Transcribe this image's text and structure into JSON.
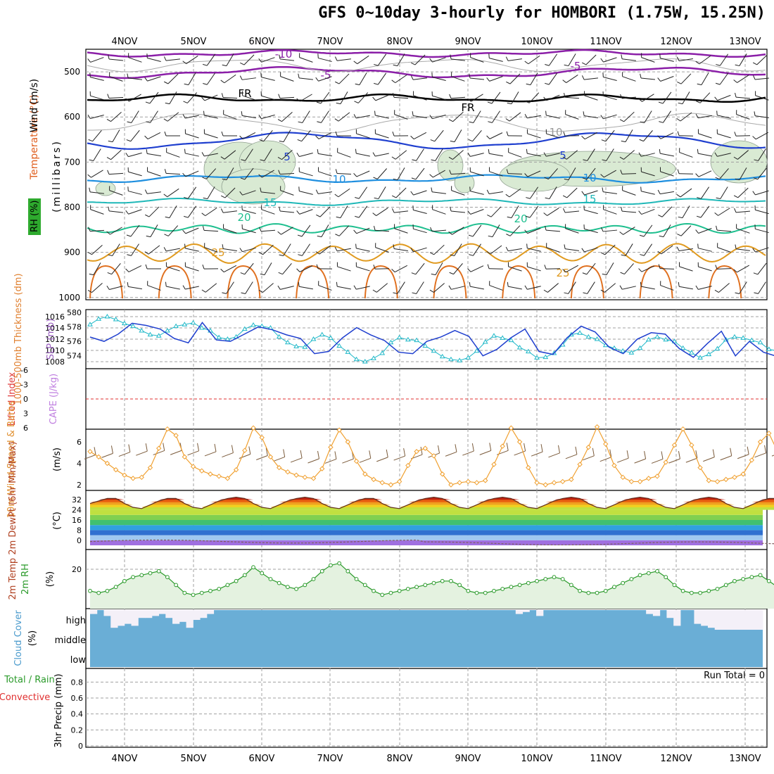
{
  "title": "GFS 0~10day 3-hourly for HOMBORI (1.75W, 15.25N)",
  "dates": [
    "4NOV",
    "5NOV",
    "6NOV",
    "7NOV",
    "8NOV",
    "9NOV",
    "10NOV",
    "11NOV",
    "12NOV",
    "13NOV"
  ],
  "colors": {
    "temp_cold": "#8b1fa8",
    "temp_fr": "#000000",
    "temp_5": "#1f3fcf",
    "temp_10": "#1f8fdf",
    "temp_15": "#1fb8b8",
    "temp_20": "#1fbf8f",
    "temp_25": "#e09a1f",
    "temp_30": "#e0701f",
    "rh_fill": "#d9ead3",
    "wind_speed": "#f0a030",
    "wind_barb": "#7a5a3a",
    "thickness": "#1f3fcf",
    "slp": "#1fb8c8",
    "dewpoint": "#806060",
    "rh2m": "#2a9a2a",
    "cloud": "#6aaed6",
    "lifted_zero": "#e03030"
  },
  "panels": {
    "upper": {
      "ylabel_parts": [
        "Wind (m/s)",
        "Temperature (°C)",
        "RH (%)"
      ],
      "y_axis_title": "(millibars)",
      "ticks": [
        "500",
        "600",
        "700",
        "800",
        "900",
        "1000"
      ],
      "contour_labels": [
        "-10",
        "-5",
        "-5",
        "FR",
        "FR",
        "5",
        "5",
        "10",
        "10",
        "15",
        "15",
        "20",
        "20",
        "25",
        "25",
        "10"
      ]
    },
    "slp": {
      "left_label": "1000-500mb Thickness (dm)",
      "right_label": "SLP (mb)",
      "left_ticks": [
        "580",
        "578",
        "576",
        "574"
      ],
      "right_ticks": [
        "1016",
        "1014",
        "1012",
        "1010",
        "1008"
      ]
    },
    "cape": {
      "left_label": "Lifted Index",
      "right_label": "CAPE (J/kg)",
      "ticks": [
        "-6",
        "-3",
        "0",
        "3",
        "6"
      ]
    },
    "wind": {
      "label": "10m Wind Speed & Barbs",
      "unit": "(m/s)",
      "ticks": [
        "6",
        "4",
        "2"
      ]
    },
    "temp": {
      "label": "2m Temp 2m DewPt (6hr Min/Max)",
      "unit": "(°C)",
      "ticks": [
        "32",
        "24",
        "16",
        "8",
        "0"
      ]
    },
    "rh": {
      "label": "2m RH",
      "unit": "(%)",
      "ticks": [
        "20"
      ]
    },
    "cloud": {
      "label": "Cloud Cover",
      "unit": "(%)",
      "ticks": [
        "high",
        "middle",
        "low"
      ]
    },
    "precip": {
      "label_parts": [
        "Total / Rain",
        "Convective"
      ],
      "ylabel": "3hr Precip (mm)",
      "ticks": [
        "0.8",
        "0.6",
        "0.4",
        "0.2",
        "0"
      ],
      "run_total": "Run Total = 0"
    }
  },
  "chart_data": [
    {
      "type": "line",
      "name": "2m RH",
      "x_step_hours": 3,
      "ylim": [
        0,
        30
      ],
      "values": [
        9,
        8,
        9,
        11,
        14,
        16,
        17,
        18,
        19,
        16,
        12,
        8,
        7,
        8,
        9,
        10,
        12,
        14,
        17,
        21,
        18,
        15,
        13,
        11,
        10,
        12,
        15,
        19,
        22,
        23,
        19,
        15,
        12,
        9,
        7,
        8,
        9,
        10,
        11,
        12,
        13,
        14,
        14,
        12,
        9,
        8,
        8,
        9,
        10,
        11,
        12,
        13,
        14,
        15,
        16,
        15,
        12,
        9,
        8,
        8,
        9,
        11,
        13,
        15,
        17,
        18,
        19,
        16,
        12,
        9,
        8,
        8,
        9,
        10,
        12,
        14,
        15,
        16,
        17,
        14,
        11,
        9,
        8,
        9,
        10,
        11,
        12,
        13,
        14,
        13,
        10,
        8,
        7,
        8,
        10,
        12,
        14,
        15
      ],
      "ylabel": "2m RH"
    },
    {
      "type": "line",
      "name": "10m wind speed",
      "ylim": [
        1.5,
        7.5
      ],
      "values": [
        5.1,
        4.6,
        4.0,
        3.4,
        2.9,
        2.6,
        2.7,
        3.6,
        5.4,
        7.2,
        6.6,
        4.6,
        3.7,
        3.3,
        3.0,
        2.8,
        2.6,
        3.4,
        5.2,
        7.3,
        6.4,
        4.6,
        3.6,
        3.2,
        2.9,
        2.7,
        2.6,
        3.5,
        5.5,
        7.1,
        6.0,
        4.2,
        3.0,
        2.5,
        2.2,
        2.0,
        2.3,
        3.8,
        5.1,
        5.4,
        4.7,
        3.0,
        2.0,
        2.2,
        2.3,
        2.2,
        2.4,
        3.9,
        5.6,
        7.3,
        6.0,
        3.6,
        2.2,
        2.0,
        2.2,
        2.3,
        2.5,
        3.9,
        5.5,
        7.4,
        5.8,
        3.8,
        2.7,
        2.3,
        2.3,
        2.6,
        2.8,
        4.1,
        5.7,
        7.2,
        5.7,
        3.6,
        2.4,
        2.3,
        2.5,
        2.7,
        3.0,
        4.3,
        6.0,
        6.8,
        5.1,
        2.8,
        2.3,
        2.3,
        2.5,
        2.6,
        2.8,
        4.2,
        5.8,
        6.5,
        5.1,
        3.0,
        2.5,
        2.4,
        2.4,
        2.4,
        2.4,
        2.9
      ],
      "ylabel": "10m Wind Speed & Barbs"
    },
    {
      "type": "line",
      "name": "SLP",
      "ylim": [
        1007,
        1017
      ],
      "values": [
        1014.6,
        1015.6,
        1016.0,
        1015.5,
        1014.8,
        1014.3,
        1013.5,
        1012.8,
        1012.6,
        1013.5,
        1014.3,
        1014.6,
        1014.9,
        1014.0,
        1013.5,
        1012.3,
        1012.0,
        1012.4,
        1013.8,
        1014.5,
        1014.3,
        1014.0,
        1012.4,
        1011.4,
        1010.7,
        1010.6,
        1012.0,
        1012.8,
        1012.2,
        1010.8,
        1009.7,
        1008.4,
        1008.0,
        1008.6,
        1009.5,
        1011.4,
        1012.3,
        1011.9,
        1011.8,
        1010.8,
        1009.9,
        1008.9,
        1008.4,
        1008.2,
        1008.7,
        1009.9,
        1011.5,
        1012.6,
        1012.2,
        1011.8,
        1010.5,
        1009.8,
        1008.7,
        1008.8,
        1009.5,
        1011.0,
        1012.8,
        1013.1,
        1012.4,
        1012.0,
        1010.9,
        1010.4,
        1009.9,
        1009.6,
        1010.4,
        1011.9,
        1012.4,
        1011.9,
        1011.6,
        1010.4,
        1009.6,
        1008.7,
        1009.3,
        1010.3,
        1011.9,
        1012.4,
        1012.2,
        1011.8,
        1011.4,
        1010.2,
        1009.9,
        1010.3,
        1011.6,
        1012.2,
        1012.0,
        1011.7,
        1011.2,
        1010.8,
        1010.4,
        1011.2,
        1012.1,
        1012.2,
        1012.0,
        1011.6,
        1011.2,
        1011.0,
        1011.2,
        1011.4
      ],
      "ylabel": "SLP (mb)"
    },
    {
      "type": "line",
      "name": "1000-500mb Thickness",
      "ylim": [
        573,
        580
      ],
      "values": [
        576.6,
        576.0,
        577.0,
        578.5,
        578.2,
        577.7,
        576.4,
        575.8,
        578.6,
        576.2,
        576.0,
        577.0,
        578.0,
        577.6,
        576.9,
        576.4,
        574.3,
        574.6,
        576.5,
        577.9,
        576.9,
        576.1,
        574.5,
        574.3,
        576.0,
        576.6,
        577.5,
        576.7,
        574.0,
        574.9,
        576.5,
        577.7,
        574.6,
        574.2,
        576.5,
        578.1,
        577.3,
        575.2,
        574.3,
        576.3,
        577.2,
        577.0,
        575.0,
        573.8,
        575.7,
        577.4,
        574.0,
        576.0,
        574.5,
        573.9,
        574.5
      ],
      "ylabel": "1000-500mb Thickness (dm)"
    },
    {
      "type": "area",
      "name": "2m Temp",
      "ylim": [
        -4,
        36
      ],
      "values": [
        29,
        31,
        33,
        33,
        29,
        26,
        25,
        28,
        31,
        33,
        33,
        29,
        26,
        25,
        28,
        31,
        33,
        34,
        33,
        29,
        26,
        25,
        28,
        31,
        33,
        34,
        33,
        29,
        26,
        25,
        28,
        31,
        33,
        33,
        29,
        26,
        25,
        28,
        31,
        33,
        34,
        33,
        29,
        26,
        25,
        28,
        31,
        33,
        34,
        33,
        29,
        26,
        25,
        28,
        31,
        33,
        34,
        33,
        29,
        26,
        25,
        28,
        31,
        33,
        34,
        33,
        29,
        26,
        25,
        28,
        31,
        33,
        34,
        33,
        29,
        26,
        25,
        28,
        31,
        33,
        33,
        32,
        28,
        26,
        25
      ],
      "ylabel": "2m Temp"
    },
    {
      "type": "bar",
      "name": "Cloud cover high",
      "ylim": [
        0,
        100
      ],
      "values": [
        80,
        100,
        70,
        10,
        20,
        30,
        20,
        60,
        60,
        70,
        80,
        60,
        30,
        40,
        10,
        50,
        60,
        80,
        100,
        100,
        100,
        100,
        100,
        100,
        100,
        100,
        100,
        100,
        100,
        100,
        100,
        100,
        100,
        100,
        100,
        100,
        100,
        100,
        100,
        100,
        100,
        100,
        100,
        100,
        100,
        100,
        100,
        100,
        100,
        100,
        100,
        100,
        100,
        100,
        100,
        100,
        100,
        100,
        100,
        100,
        100,
        100,
        80,
        90,
        100,
        70,
        100,
        100,
        100,
        100,
        100,
        100,
        100,
        100,
        100,
        100,
        100,
        100,
        100,
        100,
        100,
        80,
        70,
        100,
        60,
        20,
        100,
        100,
        30,
        20,
        10,
        0,
        0,
        0,
        0,
        0,
        0,
        0
      ],
      "ylabel": "Cloud Cover"
    }
  ]
}
